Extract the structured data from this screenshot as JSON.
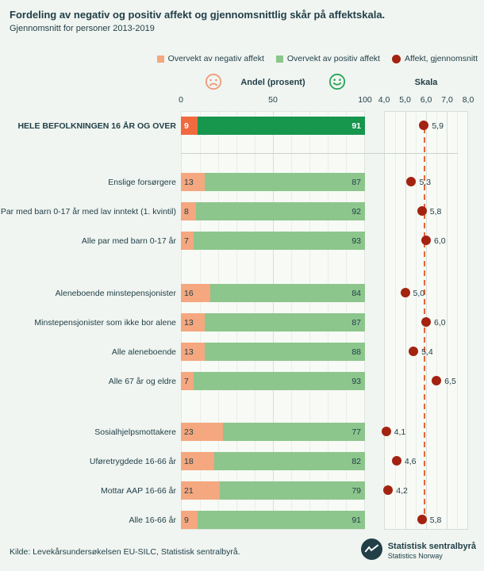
{
  "title": "Fordeling av negativ og positiv affekt og gjennomsnittlig skår på affektskala.",
  "subtitle": "Gjennomsnitt for personer 2013-2019",
  "legend": [
    {
      "label": "Overvekt av negativ affekt",
      "color": "#f5a77f",
      "shape": "square"
    },
    {
      "label": "Overvekt av positiv affekt",
      "color": "#8cc68c",
      "shape": "square"
    },
    {
      "label": "Affekt, gjennomsnitt",
      "color": "#a32310",
      "shape": "circle"
    }
  ],
  "axis_header": {
    "left_title": "Andel (prosent)",
    "right_title": "Skala"
  },
  "chart_data": {
    "type": "bar",
    "subtype": "horizontal-stacked-bars-with-dot-plot",
    "left_axis": {
      "title": "Andel (prosent)",
      "ticks": [
        "0",
        "50",
        "100"
      ],
      "range": [
        0,
        100
      ]
    },
    "right_axis": {
      "title": "Skala",
      "ticks": [
        "4,0",
        "5,0",
        "6,0",
        "7,0",
        "8,0"
      ],
      "range": [
        4,
        8
      ],
      "reference_line": 5.9
    },
    "series": [
      {
        "name": "Overvekt av negativ affekt"
      },
      {
        "name": "Overvekt av positiv affekt"
      },
      {
        "name": "Affekt, gjennomsnitt"
      }
    ],
    "groups": [
      {
        "rows": [
          {
            "label": "HELE BEFOLKNINGEN 16 ÅR OG OVER",
            "negative": 9,
            "positive": 91,
            "mean": 5.9,
            "mean_label": "5,9",
            "emphasis": true
          }
        ]
      },
      {
        "rows": [
          {
            "label": "Enslige forsørgere",
            "negative": 13,
            "positive": 87,
            "mean": 5.3,
            "mean_label": "5,3"
          },
          {
            "label": "Par med barn 0-17 år med lav inntekt (1. kvintil)",
            "negative": 8,
            "positive": 92,
            "mean": 5.8,
            "mean_label": "5,8"
          },
          {
            "label": "Alle par med barn 0-17 år",
            "negative": 7,
            "positive": 93,
            "mean": 6.0,
            "mean_label": "6,0"
          }
        ]
      },
      {
        "rows": [
          {
            "label": "Aleneboende minstepensjonister",
            "negative": 16,
            "positive": 84,
            "mean": 5.0,
            "mean_label": "5,0"
          },
          {
            "label": "Minstepensjonister som ikke bor alene",
            "negative": 13,
            "positive": 87,
            "mean": 6.0,
            "mean_label": "6,0"
          },
          {
            "label": "Alle aleneboende",
            "negative": 13,
            "positive": 88,
            "mean": 5.4,
            "mean_label": "5,4"
          },
          {
            "label": "Alle 67 år og eldre",
            "negative": 7,
            "positive": 93,
            "mean": 6.5,
            "mean_label": "6,5"
          }
        ]
      },
      {
        "rows": [
          {
            "label": "Sosialhjelpsmottakere",
            "negative": 23,
            "positive": 77,
            "mean": 4.1,
            "mean_label": "4,1"
          },
          {
            "label": "Uføretrygdede 16-66 år",
            "negative": 18,
            "positive": 82,
            "mean": 4.6,
            "mean_label": "4,6"
          },
          {
            "label": "Mottar AAP 16-66 år",
            "negative": 21,
            "positive": 79,
            "mean": 4.2,
            "mean_label": "4,2"
          },
          {
            "label": "Alle 16-66 år",
            "negative": 9,
            "positive": 91,
            "mean": 5.8,
            "mean_label": "5,8"
          }
        ]
      }
    ]
  },
  "colors": {
    "background": "#f0f5f1",
    "text": "#223f48",
    "negative": "#f5a77f",
    "positive": "#8cc68c",
    "negative_emphasis": "#f1693e",
    "positive_emphasis": "#17964e",
    "mean_dot": "#a32310",
    "reference_line": "#e2673a",
    "sad_icon": "#ef9b79",
    "happy_icon": "#2aa558"
  },
  "footer": {
    "source": "Kilde: Levekårsundersøkelsen EU-SILC, Statistisk sentralbyrå.",
    "logo_title": "Statistisk sentralbyrå",
    "logo_subtitle": "Statistics Norway"
  }
}
